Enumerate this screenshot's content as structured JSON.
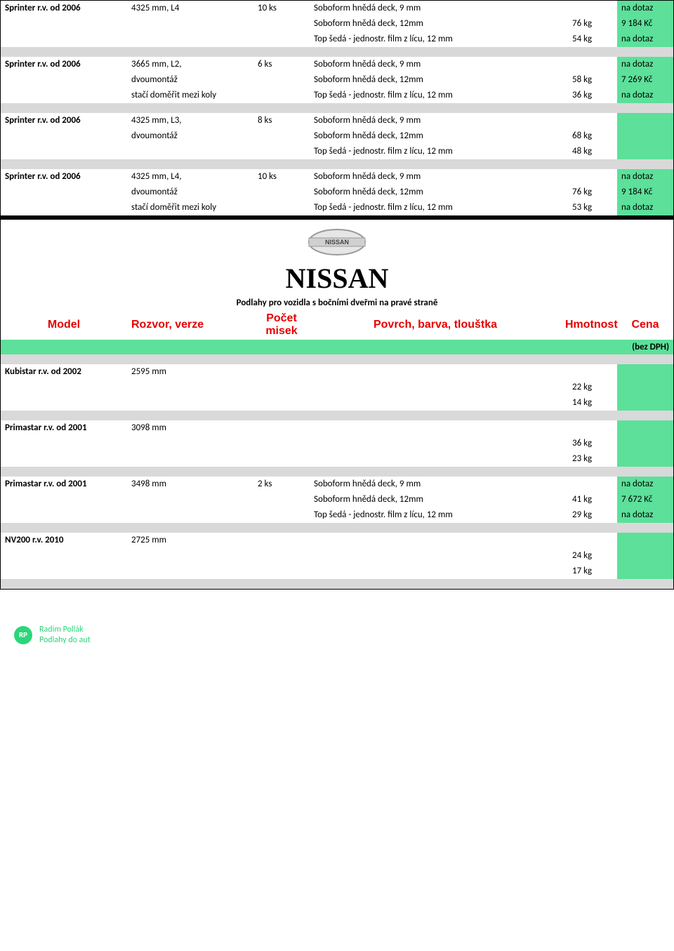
{
  "labels": {
    "na_dotaz": "na dotaz",
    "bez_dph": "(bez DPH)"
  },
  "products": {
    "sobo9": "Soboform hnědá deck, 9 mm",
    "sobo12": "Soboform hnědá deck, 12mm",
    "top": "Top šedá - jednostr. film z lícu, 12 mm"
  },
  "notes": {
    "dvoum": "dvoumontáž",
    "staci": "stačí doměřit mezi koly"
  },
  "sections": [
    {
      "model": "Sprinter r.v. od 2006",
      "version": "4325 mm, L4",
      "qty": "10 ks",
      "dvoum": false,
      "staci": false,
      "rows": [
        {
          "desc": "sobo9",
          "wt": "",
          "price": "na dotaz",
          "green": true
        },
        {
          "desc": "sobo12",
          "wt": "76 kg",
          "price": "9 184 Kč",
          "green": true
        },
        {
          "desc": "top",
          "wt": "54 kg",
          "price": "na dotaz",
          "green": true
        }
      ]
    },
    {
      "model": "Sprinter r.v. od 2006",
      "version": "3665 mm, L2,",
      "qty": "6 ks",
      "dvoum": true,
      "staci": true,
      "rows": [
        {
          "desc": "sobo9",
          "wt": "",
          "price": "na dotaz",
          "green": true
        },
        {
          "desc": "sobo12",
          "wt": "58 kg",
          "price": "7 269 Kč",
          "green": true
        },
        {
          "desc": "top",
          "wt": "36 kg",
          "price": "na dotaz",
          "green": true
        }
      ]
    },
    {
      "model": "Sprinter r.v. od 2006",
      "version": "4325 mm, L3,",
      "qty": "8 ks",
      "dvoum": true,
      "staci": false,
      "rows": [
        {
          "desc": "sobo9",
          "wt": "",
          "price": "",
          "green": true
        },
        {
          "desc": "sobo12",
          "wt": "68 kg",
          "price": "",
          "green": true
        },
        {
          "desc": "top",
          "wt": "48 kg",
          "price": "",
          "green": true
        }
      ]
    },
    {
      "model": "Sprinter r.v. od 2006",
      "version": "4325 mm, L4,",
      "qty": "10 ks",
      "dvoum": true,
      "staci": true,
      "rows": [
        {
          "desc": "sobo9",
          "wt": "",
          "price": "na dotaz",
          "green": true
        },
        {
          "desc": "sobo12",
          "wt": "76 kg",
          "price": "9 184 Kč",
          "green": true
        },
        {
          "desc": "top",
          "wt": "53 kg",
          "price": "na dotaz",
          "green": true
        }
      ]
    }
  ],
  "brand": {
    "name": "NISSAN",
    "subtitle": "Podlahy pro vozidla s bočními dveřmi na pravé straně"
  },
  "header": {
    "model": "Model",
    "rozvor": "Rozvor, verze",
    "pocet1": "Počet",
    "pocet2": "misek",
    "povrch": "Povrch, barva, tlouštka",
    "hmotnost": "Hmotnost",
    "cena": "Cena"
  },
  "nissan": [
    {
      "model": "Kubistar r.v. od 2002",
      "version": "2595 mm",
      "qty": "",
      "rows": [
        {
          "desc": "",
          "wt": "",
          "price": "",
          "green": true
        },
        {
          "desc": "",
          "wt": "22 kg",
          "price": "",
          "green": true
        },
        {
          "desc": "",
          "wt": "14 kg",
          "price": "",
          "green": true
        }
      ]
    },
    {
      "model": "Primastar r.v. od 2001",
      "version": "3098 mm",
      "qty": "",
      "rows": [
        {
          "desc": "",
          "wt": "",
          "price": "",
          "green": true
        },
        {
          "desc": "",
          "wt": "36 kg",
          "price": "",
          "green": true
        },
        {
          "desc": "",
          "wt": "23 kg",
          "price": "",
          "green": true
        }
      ]
    },
    {
      "model": "Primastar r.v. od 2001",
      "version": "3498 mm",
      "qty": "2 ks",
      "rows": [
        {
          "desc": "sobo9",
          "wt": "",
          "price": "na dotaz",
          "green": true
        },
        {
          "desc": "sobo12",
          "wt": "41 kg",
          "price": "7 672 Kč",
          "green": true
        },
        {
          "desc": "top",
          "wt": "29 kg",
          "price": "na dotaz",
          "green": true
        }
      ]
    },
    {
      "model": "NV200 r.v. 2010",
      "version": "2725 mm",
      "qty": "",
      "rows": [
        {
          "desc": "",
          "wt": "",
          "price": "",
          "green": true
        },
        {
          "desc": "",
          "wt": "24 kg",
          "price": "",
          "green": true
        },
        {
          "desc": "",
          "wt": "17 kg",
          "price": "",
          "green": true
        }
      ]
    }
  ],
  "footer": {
    "badge": "RP",
    "line1": "Radim Pollák",
    "line2": "Podlahy do aut"
  }
}
